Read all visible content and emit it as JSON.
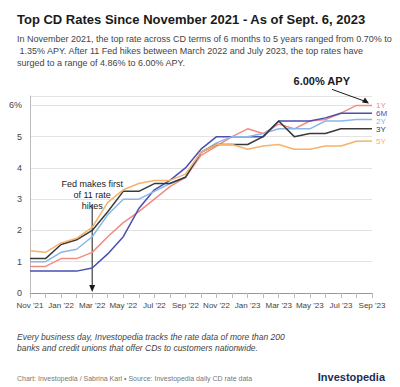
{
  "chart_data": {
    "type": "line",
    "title": "Top CD Rates Since November 2021 - As of Sept. 6, 2023",
    "subtitle": "In November 2021, the top rate across CD terms of 6 months to 5 years ranged from 0.70% to 1.35% APY. After 11 Fed hikes between March 2022 and July 2023, the top rates have surged to a range of 4.86% to 6.00% APY.",
    "footnote": "Every business day, Investopedia tracks the rate data of more than 200 banks and credit unions that offer CDs to customers nationwide.",
    "source": "Chart: Investopedia / Sabrina Karl • Source: Investopedia daily CD rate data",
    "logo": "Investopedia",
    "categories": [
      "Nov '21",
      null,
      "Jan '22",
      null,
      "Mar '22",
      null,
      "May '22",
      null,
      "Jul '22",
      null,
      "Sep '22",
      null,
      "Nov '22",
      null,
      "Jan '23",
      null,
      "Mar '23",
      null,
      "May '23",
      null,
      "Jul '23",
      null,
      "Sep '23"
    ],
    "series": [
      {
        "name": "1Y",
        "color": "#f28b82",
        "values": [
          0.85,
          0.85,
          1.1,
          1.1,
          1.3,
          1.8,
          2.25,
          2.6,
          3.0,
          3.4,
          3.7,
          4.4,
          4.7,
          5.0,
          5.25,
          5.1,
          5.4,
          5.25,
          5.5,
          5.55,
          5.75,
          6.0,
          6.0
        ]
      },
      {
        "name": "6M",
        "color": "#4a4fb0",
        "values": [
          0.7,
          0.7,
          0.7,
          0.7,
          0.8,
          1.25,
          1.8,
          2.7,
          3.3,
          3.6,
          4.0,
          4.6,
          5.0,
          5.0,
          5.0,
          5.0,
          5.5,
          5.5,
          5.5,
          5.6,
          5.75,
          5.75,
          5.75
        ]
      },
      {
        "name": "2Y",
        "color": "#8ab6e8",
        "values": [
          1.0,
          1.0,
          1.3,
          1.4,
          1.8,
          2.5,
          3.0,
          3.0,
          3.25,
          3.5,
          3.7,
          4.5,
          4.8,
          5.0,
          5.0,
          5.1,
          5.25,
          5.25,
          5.25,
          5.5,
          5.5,
          5.55,
          5.55
        ]
      },
      {
        "name": "3Y",
        "color": "#3a3a3a",
        "values": [
          1.1,
          1.1,
          1.55,
          1.7,
          2.0,
          2.6,
          3.25,
          3.25,
          3.5,
          3.5,
          3.7,
          4.5,
          4.75,
          4.75,
          4.75,
          5.0,
          5.5,
          5.0,
          5.1,
          5.1,
          5.25,
          5.25,
          5.25
        ]
      },
      {
        "name": "5Y",
        "color": "#f6b26b",
        "values": [
          1.35,
          1.3,
          1.6,
          1.75,
          2.1,
          2.9,
          3.3,
          3.5,
          3.6,
          3.6,
          3.8,
          4.5,
          4.75,
          4.75,
          4.6,
          4.7,
          4.75,
          4.6,
          4.6,
          4.7,
          4.7,
          4.85,
          4.86
        ]
      }
    ],
    "ylim": [
      0,
      6.3
    ],
    "yticks": [
      0,
      1,
      2,
      3,
      4,
      5,
      {
        "value": 6,
        "label": "6%"
      }
    ],
    "grid": true,
    "annotations": [
      {
        "text": "6.00% APY",
        "x": "Sep '23",
        "y": 6.0
      },
      {
        "text": "Fed makes first of 11 rate hikes",
        "x": "Mar '22"
      }
    ]
  }
}
